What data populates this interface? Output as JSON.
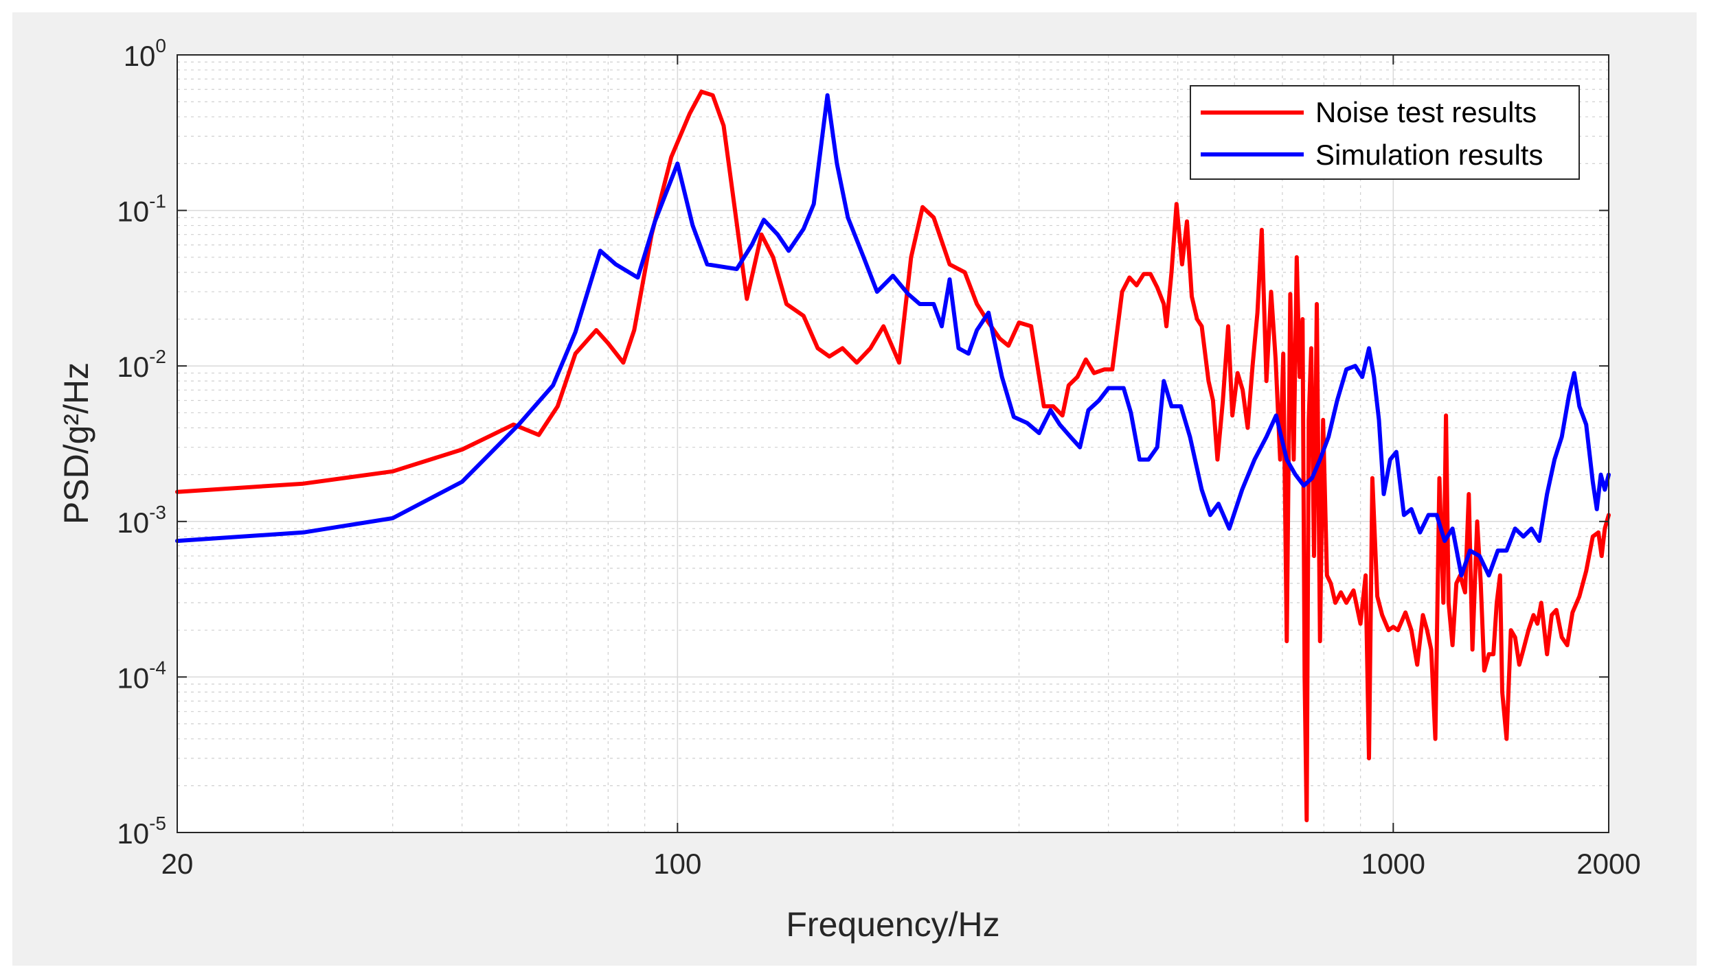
{
  "chart_data": {
    "type": "line",
    "xscale": "log",
    "yscale": "log",
    "xlim": [
      20,
      2000
    ],
    "ylim": [
      1e-05,
      1
    ],
    "xlabel": "Frequency/Hz",
    "ylabel": "PSD/g²/Hz",
    "x_ticks": [
      "20",
      "100",
      "1000",
      "2000"
    ],
    "y_ticks": [
      {
        "base": "10",
        "exp": "0"
      },
      {
        "base": "10",
        "exp": "-1"
      },
      {
        "base": "10",
        "exp": "-2"
      },
      {
        "base": "10",
        "exp": "-3"
      },
      {
        "base": "10",
        "exp": "-4"
      },
      {
        "base": "10",
        "exp": "-5"
      }
    ],
    "grid": true,
    "minor_grid": true,
    "legend_position": "top-right",
    "series": [
      {
        "name": "Noise test results",
        "color": "#ff0000",
        "points": [
          [
            20,
            0.00155
          ],
          [
            30,
            0.00175
          ],
          [
            40,
            0.0021
          ],
          [
            50,
            0.0029
          ],
          [
            59,
            0.0042
          ],
          [
            64,
            0.0036
          ],
          [
            68,
            0.0055
          ],
          [
            72,
            0.012
          ],
          [
            77,
            0.017
          ],
          [
            80,
            0.014
          ],
          [
            84,
            0.0105
          ],
          [
            87,
            0.017
          ],
          [
            92,
            0.07
          ],
          [
            98,
            0.22
          ],
          [
            104,
            0.42
          ],
          [
            108,
            0.58
          ],
          [
            112,
            0.55
          ],
          [
            116,
            0.35
          ],
          [
            120,
            0.11
          ],
          [
            125,
            0.027
          ],
          [
            131,
            0.07
          ],
          [
            136,
            0.05
          ],
          [
            142,
            0.025
          ],
          [
            150,
            0.021
          ],
          [
            157,
            0.013
          ],
          [
            163,
            0.0115
          ],
          [
            170,
            0.013
          ],
          [
            178,
            0.0105
          ],
          [
            186,
            0.013
          ],
          [
            194,
            0.018
          ],
          [
            204,
            0.0105
          ],
          [
            212,
            0.05
          ],
          [
            220,
            0.105
          ],
          [
            228,
            0.09
          ],
          [
            240,
            0.045
          ],
          [
            252,
            0.04
          ],
          [
            262,
            0.025
          ],
          [
            272,
            0.019
          ],
          [
            282,
            0.015
          ],
          [
            290,
            0.0135
          ],
          [
            300,
            0.019
          ],
          [
            312,
            0.018
          ],
          [
            325,
            0.0055
          ],
          [
            335,
            0.0055
          ],
          [
            345,
            0.0048
          ],
          [
            352,
            0.0075
          ],
          [
            362,
            0.0085
          ],
          [
            372,
            0.011
          ],
          [
            382,
            0.009
          ],
          [
            395,
            0.0095
          ],
          [
            405,
            0.0095
          ],
          [
            418,
            0.03
          ],
          [
            428,
            0.037
          ],
          [
            438,
            0.033
          ],
          [
            448,
            0.039
          ],
          [
            458,
            0.039
          ],
          [
            468,
            0.032
          ],
          [
            478,
            0.025
          ],
          [
            482,
            0.018
          ],
          [
            490,
            0.04
          ],
          [
            498,
            0.11
          ],
          [
            507,
            0.045
          ],
          [
            515,
            0.085
          ],
          [
            523,
            0.028
          ],
          [
            532,
            0.02
          ],
          [
            540,
            0.018
          ],
          [
            552,
            0.008
          ],
          [
            560,
            0.006
          ],
          [
            568,
            0.0025
          ],
          [
            578,
            0.006
          ],
          [
            588,
            0.018
          ],
          [
            596,
            0.0048
          ],
          [
            606,
            0.009
          ],
          [
            616,
            0.007
          ],
          [
            626,
            0.004
          ],
          [
            636,
            0.01
          ],
          [
            646,
            0.022
          ],
          [
            655,
            0.075
          ],
          [
            665,
            0.008
          ],
          [
            675,
            0.03
          ],
          [
            685,
            0.011
          ],
          [
            695,
            0.0025
          ],
          [
            702,
            0.012
          ],
          [
            710,
            0.00017
          ],
          [
            718,
            0.029
          ],
          [
            726,
            0.0025
          ],
          [
            733,
            0.05
          ],
          [
            740,
            0.0085
          ],
          [
            747,
            0.02
          ],
          [
            752,
            0.0001
          ],
          [
            757,
            1.2e-05
          ],
          [
            762,
            0.0045
          ],
          [
            768,
            0.013
          ],
          [
            775,
            0.0006
          ],
          [
            782,
            0.025
          ],
          [
            790,
            0.00017
          ],
          [
            798,
            0.0045
          ],
          [
            808,
            0.00045
          ],
          [
            818,
            0.0004
          ],
          [
            830,
            0.0003
          ],
          [
            845,
            0.00035
          ],
          [
            860,
            0.0003
          ],
          [
            880,
            0.00036
          ],
          [
            900,
            0.00022
          ],
          [
            915,
            0.00045
          ],
          [
            925,
            3e-05
          ],
          [
            935,
            0.0019
          ],
          [
            950,
            0.00033
          ],
          [
            965,
            0.00025
          ],
          [
            985,
            0.0002
          ],
          [
            1000,
            0.00021
          ],
          [
            1015,
            0.0002
          ],
          [
            1040,
            0.00026
          ],
          [
            1060,
            0.0002
          ],
          [
            1080,
            0.00012
          ],
          [
            1100,
            0.00025
          ],
          [
            1115,
            0.0002
          ],
          [
            1130,
            0.00015
          ],
          [
            1145,
            4e-05
          ],
          [
            1160,
            0.0019
          ],
          [
            1175,
            0.0003
          ],
          [
            1185,
            0.0048
          ],
          [
            1195,
            0.0003
          ],
          [
            1210,
            0.00016
          ],
          [
            1225,
            0.0004
          ],
          [
            1240,
            0.00045
          ],
          [
            1260,
            0.00035
          ],
          [
            1275,
            0.0015
          ],
          [
            1290,
            0.00015
          ],
          [
            1310,
            0.001
          ],
          [
            1325,
            0.0004
          ],
          [
            1340,
            0.00011
          ],
          [
            1360,
            0.00014
          ],
          [
            1380,
            0.00014
          ],
          [
            1395,
            0.0003
          ],
          [
            1410,
            0.00045
          ],
          [
            1420,
            8e-05
          ],
          [
            1440,
            4e-05
          ],
          [
            1460,
            0.0002
          ],
          [
            1480,
            0.00018
          ],
          [
            1500,
            0.00012
          ],
          [
            1520,
            0.00015
          ],
          [
            1545,
            0.0002
          ],
          [
            1570,
            0.00025
          ],
          [
            1590,
            0.00022
          ],
          [
            1610,
            0.0003
          ],
          [
            1640,
            0.00014
          ],
          [
            1665,
            0.00025
          ],
          [
            1690,
            0.00027
          ],
          [
            1720,
            0.00018
          ],
          [
            1750,
            0.00016
          ],
          [
            1780,
            0.00026
          ],
          [
            1820,
            0.00033
          ],
          [
            1860,
            0.00048
          ],
          [
            1900,
            0.0008
          ],
          [
            1935,
            0.00085
          ],
          [
            1955,
            0.0006
          ],
          [
            1975,
            0.0009
          ],
          [
            2000,
            0.0011
          ]
        ]
      },
      {
        "name": "Simulation results",
        "color": "#0000ff",
        "points": [
          [
            20,
            0.00075
          ],
          [
            30,
            0.00085
          ],
          [
            40,
            0.00105
          ],
          [
            50,
            0.0018
          ],
          [
            60,
            0.0042
          ],
          [
            67,
            0.0075
          ],
          [
            72,
            0.0165
          ],
          [
            78,
            0.055
          ],
          [
            82,
            0.045
          ],
          [
            88,
            0.037
          ],
          [
            93,
            0.085
          ],
          [
            100,
            0.2
          ],
          [
            105,
            0.08
          ],
          [
            110,
            0.045
          ],
          [
            121,
            0.042
          ],
          [
            127,
            0.06
          ],
          [
            132,
            0.087
          ],
          [
            138,
            0.07
          ],
          [
            143,
            0.055
          ],
          [
            150,
            0.076
          ],
          [
            155,
            0.11
          ],
          [
            162,
            0.55
          ],
          [
            167,
            0.2
          ],
          [
            173,
            0.09
          ],
          [
            182,
            0.05
          ],
          [
            190,
            0.03
          ],
          [
            200,
            0.038
          ],
          [
            210,
            0.029
          ],
          [
            218,
            0.025
          ],
          [
            228,
            0.025
          ],
          [
            234,
            0.018
          ],
          [
            240,
            0.036
          ],
          [
            247,
            0.013
          ],
          [
            255,
            0.012
          ],
          [
            262,
            0.017
          ],
          [
            272,
            0.022
          ],
          [
            284,
            0.0085
          ],
          [
            295,
            0.0047
          ],
          [
            308,
            0.0043
          ],
          [
            320,
            0.0037
          ],
          [
            332,
            0.0052
          ],
          [
            342,
            0.0042
          ],
          [
            354,
            0.0035
          ],
          [
            365,
            0.003
          ],
          [
            375,
            0.0052
          ],
          [
            388,
            0.006
          ],
          [
            400,
            0.0072
          ],
          [
            420,
            0.0072
          ],
          [
            430,
            0.005
          ],
          [
            442,
            0.0025
          ],
          [
            455,
            0.0025
          ],
          [
            468,
            0.003
          ],
          [
            478,
            0.008
          ],
          [
            490,
            0.0055
          ],
          [
            505,
            0.0055
          ],
          [
            520,
            0.0035
          ],
          [
            540,
            0.0016
          ],
          [
            555,
            0.0011
          ],
          [
            570,
            0.0013
          ],
          [
            590,
            0.0009
          ],
          [
            615,
            0.0016
          ],
          [
            640,
            0.0025
          ],
          [
            665,
            0.0035
          ],
          [
            686,
            0.0048
          ],
          [
            710,
            0.0025
          ],
          [
            730,
            0.002
          ],
          [
            750,
            0.0017
          ],
          [
            770,
            0.0019
          ],
          [
            790,
            0.0025
          ],
          [
            812,
            0.0035
          ],
          [
            835,
            0.006
          ],
          [
            860,
            0.0095
          ],
          [
            885,
            0.01
          ],
          [
            905,
            0.0085
          ],
          [
            925,
            0.013
          ],
          [
            940,
            0.0085
          ],
          [
            955,
            0.0045
          ],
          [
            970,
            0.0015
          ],
          [
            990,
            0.0025
          ],
          [
            1010,
            0.0028
          ],
          [
            1035,
            0.0011
          ],
          [
            1060,
            0.0012
          ],
          [
            1090,
            0.00085
          ],
          [
            1120,
            0.0011
          ],
          [
            1150,
            0.0011
          ],
          [
            1180,
            0.00075
          ],
          [
            1210,
            0.0009
          ],
          [
            1245,
            0.00045
          ],
          [
            1280,
            0.00065
          ],
          [
            1320,
            0.0006
          ],
          [
            1360,
            0.00045
          ],
          [
            1400,
            0.00065
          ],
          [
            1440,
            0.00065
          ],
          [
            1480,
            0.0009
          ],
          [
            1520,
            0.0008
          ],
          [
            1560,
            0.0009
          ],
          [
            1600,
            0.00075
          ],
          [
            1640,
            0.0015
          ],
          [
            1680,
            0.0025
          ],
          [
            1720,
            0.0035
          ],
          [
            1760,
            0.0065
          ],
          [
            1790,
            0.009
          ],
          [
            1820,
            0.0055
          ],
          [
            1860,
            0.0042
          ],
          [
            1900,
            0.0018
          ],
          [
            1925,
            0.0012
          ],
          [
            1950,
            0.002
          ],
          [
            1975,
            0.0016
          ],
          [
            2000,
            0.002
          ]
        ]
      }
    ]
  }
}
